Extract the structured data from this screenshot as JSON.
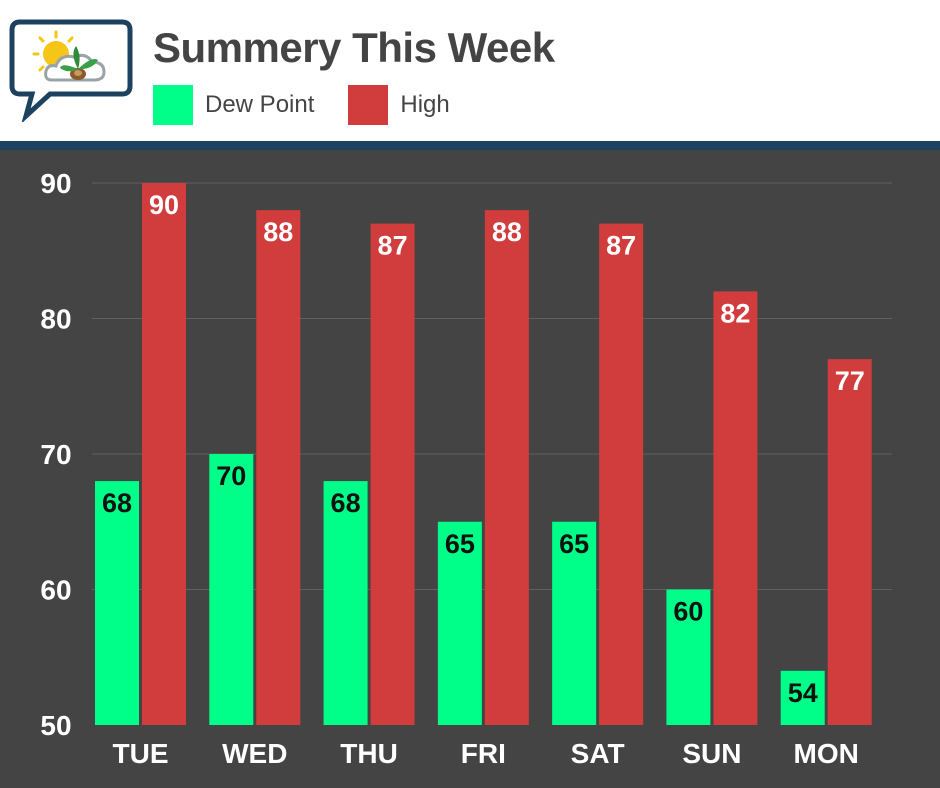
{
  "chart_data": {
    "type": "bar",
    "title": "Summery This Week",
    "categories": [
      "TUE",
      "WED",
      "THU",
      "FRI",
      "SAT",
      "SUN",
      "MON"
    ],
    "series": [
      {
        "name": "Dew Point",
        "color": "#00ff88",
        "label_color": "#111111",
        "values": [
          68,
          70,
          68,
          65,
          65,
          60,
          54
        ]
      },
      {
        "name": "High",
        "color": "#d13c3c",
        "label_color": "#ffffff",
        "values": [
          90,
          88,
          87,
          88,
          87,
          82,
          77
        ]
      }
    ],
    "ylim": [
      50,
      90
    ],
    "yticks": [
      "50",
      "60",
      "70",
      "80",
      "90"
    ],
    "grid": true,
    "legend": "top-left"
  },
  "header": {
    "logo_icon": "weather-sun-cloud-plant-icon"
  },
  "colors": {
    "background": "#444444",
    "header_rule": "#1d4260",
    "grid": "#606060",
    "axis_text": "#ffffff"
  }
}
